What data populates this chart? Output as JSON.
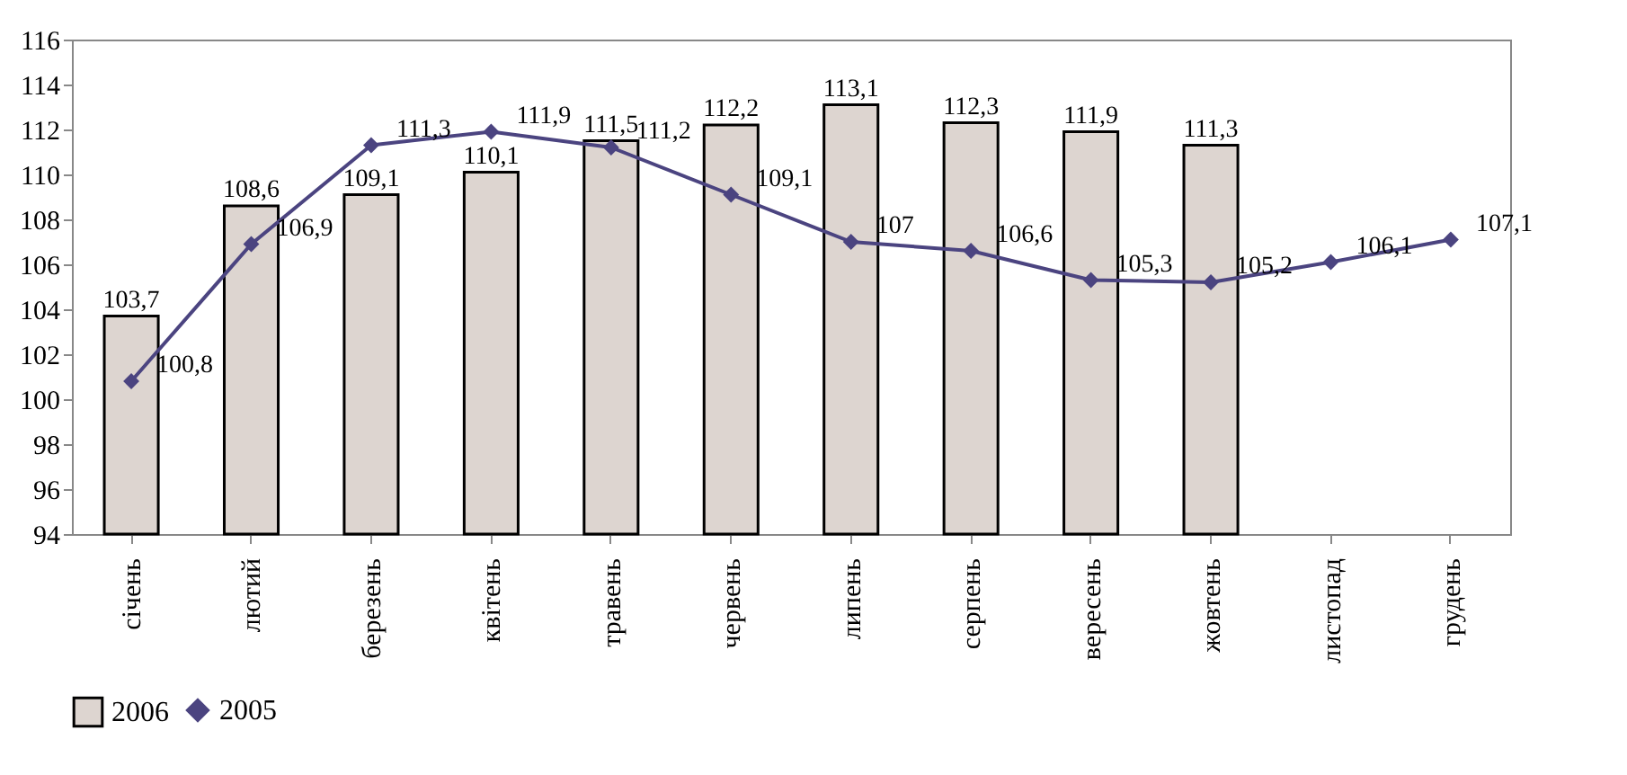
{
  "chart_data": {
    "type": "bar",
    "categories": [
      "січень",
      "лютий",
      "березень",
      "квітень",
      "травень",
      "червень",
      "липень",
      "серпень",
      "вересень",
      "жовтень",
      "листопад",
      "грудень"
    ],
    "series": [
      {
        "name": "2006",
        "color": "#ddd5d0",
        "values": [
          103.7,
          108.6,
          109.1,
          110.1,
          111.5,
          112.2,
          113.1,
          112.3,
          111.9,
          111.3,
          null,
          null
        ],
        "value_labels": [
          "103,7",
          "108,6",
          "109,1",
          "110,1",
          "111,5",
          "112,2",
          "113,1",
          "112,3",
          "111,9",
          "111,3",
          null,
          null
        ]
      },
      {
        "name": "2005",
        "type": "line",
        "color": "#4b4480",
        "marker": "diamond",
        "values": [
          100.8,
          106.9,
          111.3,
          111.9,
          111.2,
          109.1,
          107,
          106.6,
          105.3,
          105.2,
          106.1,
          107.1
        ],
        "value_labels": [
          "100,8",
          "106,9",
          "111,3",
          "111,9",
          "111,2",
          "109,1",
          "107",
          "106,6",
          "105,3",
          "105,2",
          "106,1",
          "107,1"
        ]
      }
    ],
    "ylim": [
      94,
      116
    ],
    "yticks": [
      94,
      96,
      98,
      100,
      102,
      104,
      106,
      108,
      110,
      112,
      114,
      116
    ],
    "grid": false,
    "legend": "bottom"
  }
}
